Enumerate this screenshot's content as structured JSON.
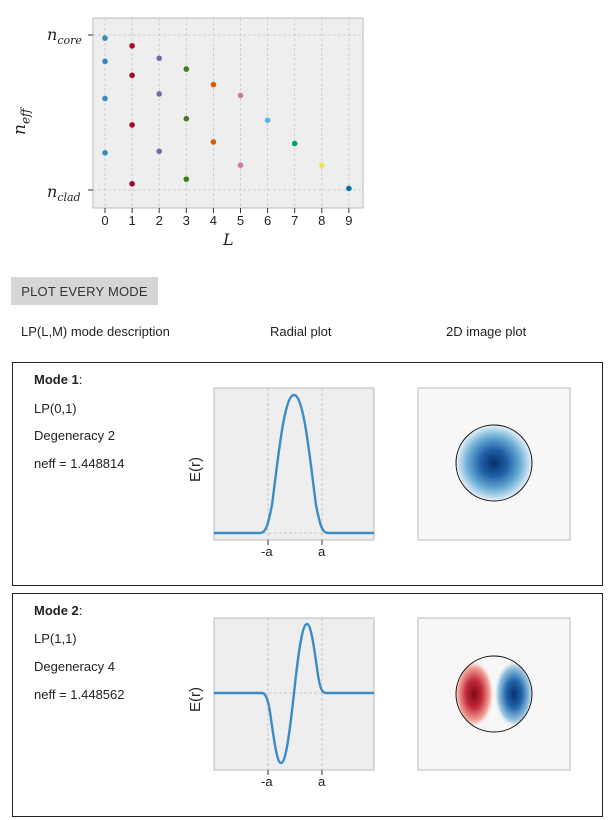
{
  "chart_data": {
    "type": "scatter",
    "xlabel": "L",
    "ylabel": "n_eff",
    "x_ticks": [
      "0",
      "1",
      "2",
      "3",
      "4",
      "5",
      "6",
      "7",
      "8",
      "9"
    ],
    "y_tick_labels": [
      "n_core",
      "n_clad"
    ],
    "y_range": [
      0,
      1
    ],
    "grid": true,
    "series": [
      {
        "x": 0,
        "values": [
          0.98,
          0.83,
          0.59,
          0.24
        ],
        "color": "#348ABD"
      },
      {
        "x": 1,
        "values": [
          0.93,
          0.74,
          0.42,
          0.04
        ],
        "color": "#A60628"
      },
      {
        "x": 2,
        "values": [
          0.85,
          0.62,
          0.25
        ],
        "color": "#7A68A6"
      },
      {
        "x": 3,
        "values": [
          0.78,
          0.46,
          0.07
        ],
        "color": "#467821"
      },
      {
        "x": 4,
        "values": [
          0.68,
          0.31
        ],
        "color": "#D55E00"
      },
      {
        "x": 5,
        "values": [
          0.61,
          0.16
        ],
        "color": "#CC79A7"
      },
      {
        "x": 6,
        "values": [
          0.45
        ],
        "color": "#56B4E9"
      },
      {
        "x": 7,
        "values": [
          0.3
        ],
        "color": "#009E73"
      },
      {
        "x": 8,
        "values": [
          0.16
        ],
        "color": "#F0E442"
      },
      {
        "x": 9,
        "values": [
          0.01
        ],
        "color": "#0072B2"
      }
    ]
  },
  "button": {
    "label": "PLOT EVERY MODE"
  },
  "columns": {
    "description": "LP(L,M) mode description",
    "radial": "Radial plot",
    "image2d": "2D image plot"
  },
  "modes": [
    {
      "title": "Mode 1",
      "lp": "LP(0,1)",
      "degeneracy": "Degeneracy 2",
      "neff": "neff = 1.448814",
      "radial_ylabel": "E(r)",
      "x_tick_left": "-a",
      "x_tick_right": "a"
    },
    {
      "title": "Mode 2",
      "lp": "LP(1,1)",
      "degeneracy": "Degeneracy 4",
      "neff": "neff = 1.448562",
      "radial_ylabel": "E(r)",
      "x_tick_left": "-a",
      "x_tick_right": "a"
    }
  ],
  "colors": {
    "line": "#3C8BC4",
    "plot_bg": "#EEEEEE",
    "button_bg": "#D6D6D6"
  }
}
